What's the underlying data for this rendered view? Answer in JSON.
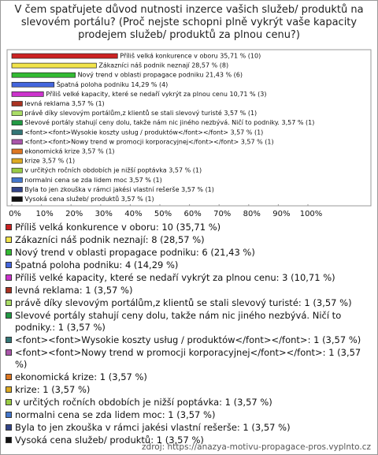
{
  "chart_data": {
    "type": "hbar",
    "title": "V čem spatřujete důvod nutnosti inzerce vašich služeb/ produktů na slevovém portálu? (Proč nejste schopni plně vykrýt vaše kapacity prodejem služeb/ produktů za plnou cenu?)",
    "categories": [
      "Příliš velká konkurence v oboru",
      "Zákazníci náš podnik neznají",
      "Nový trend v oblasti propagace podniku",
      "Špatná poloha podniku",
      "Příliš velké kapacity, které se nedaří vykrýt za plnou cenu",
      "levná reklama",
      "právě díky slevovým portálům,z klientů se stali slevový turisté",
      "Slevové portály stahují ceny dolu, takže nám nic jiného nezbývá. Ničí to podniky.",
      "<font><font>Wysokie koszty usług / produktów</font></font>",
      "<font><font>Nowy trend w promocji korporacyjnej</font></font>",
      "ekonomická krize",
      "krize",
      "v určitých ročních obdobích je nižší poptávka",
      "normalni cena  se zda lidem  moc",
      "Byla to jen zkouška v rámci jakési vlastní rešerše",
      "Vysoká cena služeb/ produktů"
    ],
    "values": [
      35.71,
      28.57,
      21.43,
      14.29,
      10.71,
      3.57,
      3.57,
      3.57,
      3.57,
      3.57,
      3.57,
      3.57,
      3.57,
      3.57,
      3.57,
      3.57
    ],
    "value_labels": [
      "Příliš velká konkurence v oboru 35,71 % (10)",
      "Zákazníci náš podnik neznají 28,57 % (8)",
      "Nový trend v oblasti propagace podniku 21,43 % (6)",
      "Špatná poloha podniku 14,29 % (4)",
      "Příliš velké kapacity, které se nedaří vykrýt za plnou cenu 10,71 % (3)",
      "levná reklama 3,57 % (1)",
      "právě díky slevovým portálům,z klientů se stali slevový turisté 3,57 % (1)",
      "Slevové portály stahují ceny dolu, takže nám nic jiného nezbývá. Ničí to podniky. 3,57 % (1)",
      "<font><font>Wysokie koszty usług / produktów</font></font> 3,57 % (1)",
      "<font><font>Nowy trend w promocji korporacyjnej</font></font> 3,57 % (1)",
      "ekonomická krize 3,57 % (1)",
      "krize 3,57 % (1)",
      "v určitých ročních obdobích je nižší poptávka 3,57 % (1)",
      "normalni cena  se zda lidem  moc 3,57 % (1)",
      "Byla to jen zkouška v rámci jakési vlastní rešerše 3,57 % (1)",
      "Vysoká cena služeb/ produktů 3,57 % (1)"
    ],
    "legend_labels": [
      "Příliš velká konkurence v oboru: 10 (35,71 %)",
      "Zákazníci náš podnik neznají: 8 (28,57 %)",
      "Nový trend v oblasti propagace podniku: 6 (21,43 %)",
      "Špatná poloha podniku: 4 (14,29 %)",
      "Příliš velké kapacity, které se nedaří vykrýt za plnou cenu: 3 (10,71 %)",
      "levná reklama: 1 (3,57 %)",
      "právě díky slevovým portálům,z klientů se stali slevový turisté: 1 (3,57 %)",
      "Slevové portály stahují ceny dolu, takže nám nic jiného nezbývá. Ničí to podniky.: 1 (3,57 %)",
      "<font><font>Wysokie koszty usług / produktów</font></font>: 1 (3,57 %)",
      "<font><font>Nowy trend w promocji korporacyjnej</font></font>: 1 (3,57 %)",
      "ekonomická krize: 1 (3,57 %)",
      "krize: 1 (3,57 %)",
      "v určitých ročních obdobích je nižší poptávka: 1 (3,57 %)",
      "normalni cena  se zda lidem  moc: 1 (3,57 %)",
      "Byla to jen zkouška v rámci jakési vlastní rešerše: 1 (3,57 %)",
      "Vysoká cena služeb/ produktů: 1 (3,57 %)"
    ],
    "colors": [
      "#cc2222",
      "#f2e44a",
      "#33bb33",
      "#4466dd",
      "#cc33cc",
      "#aa3322",
      "#aadd66",
      "#229944",
      "#337777",
      "#aa55aa",
      "#dd7722",
      "#ddaa22",
      "#99cc44",
      "#4477cc",
      "#334488",
      "#111111"
    ],
    "xlim": [
      0,
      100
    ],
    "xticks": [
      {
        "value": 0,
        "label": "0%"
      },
      {
        "value": 10,
        "label": "10%"
      },
      {
        "value": 20,
        "label": "20%"
      },
      {
        "value": 30,
        "label": "30%"
      },
      {
        "value": 40,
        "label": "40%"
      },
      {
        "value": 50,
        "label": "50%"
      },
      {
        "value": 60,
        "label": "60%"
      },
      {
        "value": 70,
        "label": "70%"
      },
      {
        "value": 80,
        "label": "80%"
      },
      {
        "value": 90,
        "label": "90%"
      },
      {
        "value": 100,
        "label": "100%"
      }
    ],
    "source": "zdroj: https://anazya-motivu-propagace-pros.vyplnto.cz"
  }
}
